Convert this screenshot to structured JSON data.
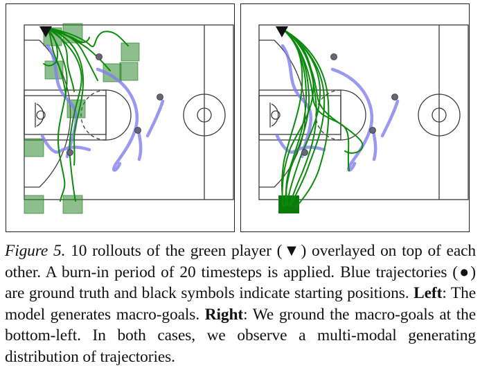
{
  "figure": {
    "panels": [
      {
        "id": "left",
        "mode": "model-generated macro-goals"
      },
      {
        "id": "right",
        "mode": "grounded macro-goals at bottom-left"
      }
    ],
    "colors": {
      "court_line": "#3a3a3a",
      "green_trajectory": "#0b8a0b",
      "blue_trajectory": "#8080ee",
      "macro_goal_box": "#2e8b2e",
      "player_marker": "#666677"
    },
    "icons": [
      "start-triangle-icon",
      "player-dot-icon"
    ]
  },
  "caption": {
    "label": "Figure 5.",
    "line1": " 10 rollouts of the green player (▼) overlayed on top of each other. A burn-in period of 20 timesteps is applied. Blue trajectories (●) are ground truth and black symbols indicate starting positions. ",
    "left_label": "Left",
    "left_text": ": The model generates macro-goals. ",
    "right_label": "Right",
    "right_text": ": We ground the macro-goals at the bottom-left.  In both cases, we observe a multi-modal generating distribution of trajectories."
  }
}
